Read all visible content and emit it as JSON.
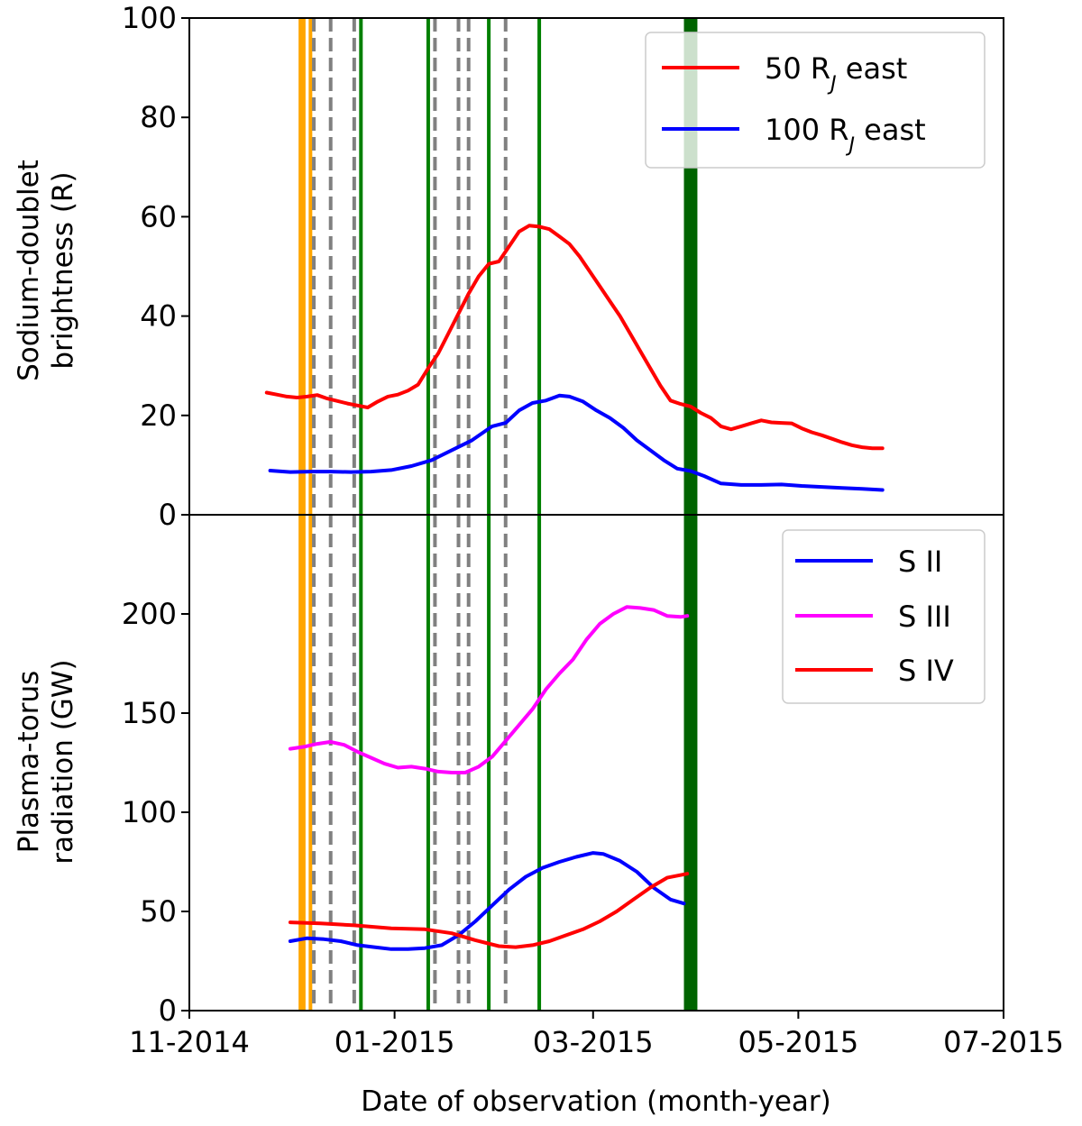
{
  "chart_data": [
    {
      "type": "line",
      "panel": "top",
      "ylabel": "Sodium-doublet brightness (R)",
      "ylim": [
        0,
        100
      ],
      "y_ticks": [
        "0",
        "20",
        "40",
        "60",
        "80",
        "100"
      ],
      "legend_placement": "top-right",
      "series": [
        {
          "name": "50 RJ east",
          "name_base": "50 R",
          "name_sub": "J",
          "name_suffix": " east",
          "color": "#ff0000",
          "points": [
            [
              "2014-11-24",
              24.6
            ],
            [
              "2014-11-27",
              24.2
            ],
            [
              "2014-11-30",
              23.8
            ],
            [
              "2014-12-03",
              23.6
            ],
            [
              "2014-12-06",
              23.8
            ],
            [
              "2014-12-09",
              24.1
            ],
            [
              "2014-12-12",
              23.4
            ],
            [
              "2014-12-15",
              22.9
            ],
            [
              "2014-12-18",
              22.4
            ],
            [
              "2014-12-21",
              22.0
            ],
            [
              "2014-12-24",
              21.6
            ],
            [
              "2014-12-27",
              22.8
            ],
            [
              "2014-12-30",
              23.8
            ],
            [
              "2015-01-02",
              24.2
            ],
            [
              "2015-01-05",
              25.0
            ],
            [
              "2015-01-08",
              26.2
            ],
            [
              "2015-01-11",
              29.5
            ],
            [
              "2015-01-14",
              32.5
            ],
            [
              "2015-01-17",
              36.5
            ],
            [
              "2015-01-20",
              40.5
            ],
            [
              "2015-01-23",
              44.5
            ],
            [
              "2015-01-26",
              48.0
            ],
            [
              "2015-01-29",
              50.5
            ],
            [
              "2015-02-01",
              51.0
            ],
            [
              "2015-02-04",
              54.0
            ],
            [
              "2015-02-07",
              57.0
            ],
            [
              "2015-02-10",
              58.2
            ],
            [
              "2015-02-13",
              58.0
            ],
            [
              "2015-02-16",
              57.5
            ],
            [
              "2015-02-19",
              56.0
            ],
            [
              "2015-02-22",
              54.5
            ],
            [
              "2015-02-25",
              52.0
            ],
            [
              "2015-02-28",
              49.0
            ],
            [
              "2015-03-03",
              46.0
            ],
            [
              "2015-03-06",
              43.0
            ],
            [
              "2015-03-09",
              40.0
            ],
            [
              "2015-03-12",
              36.5
            ],
            [
              "2015-03-15",
              33.0
            ],
            [
              "2015-03-18",
              29.5
            ],
            [
              "2015-03-21",
              26.0
            ],
            [
              "2015-03-24",
              23.0
            ],
            [
              "2015-03-27",
              22.3
            ],
            [
              "2015-03-30",
              21.8
            ],
            [
              "2015-04-02",
              20.5
            ],
            [
              "2015-04-05",
              19.5
            ],
            [
              "2015-04-08",
              17.8
            ],
            [
              "2015-04-11",
              17.2
            ],
            [
              "2015-04-14",
              17.8
            ],
            [
              "2015-04-17",
              18.4
            ],
            [
              "2015-04-20",
              19.0
            ],
            [
              "2015-04-23",
              18.6
            ],
            [
              "2015-04-26",
              18.5
            ],
            [
              "2015-04-29",
              18.4
            ],
            [
              "2015-05-02",
              17.4
            ],
            [
              "2015-05-05",
              16.6
            ],
            [
              "2015-05-08",
              16.0
            ],
            [
              "2015-05-11",
              15.3
            ],
            [
              "2015-05-14",
              14.6
            ],
            [
              "2015-05-17",
              14.0
            ],
            [
              "2015-05-20",
              13.6
            ],
            [
              "2015-05-23",
              13.4
            ],
            [
              "2015-05-26",
              13.4
            ]
          ]
        },
        {
          "name": "100 RJ east",
          "name_base": "100 R",
          "name_sub": "J",
          "name_suffix": " east",
          "color": "#0000ff",
          "points": [
            [
              "2014-11-25",
              8.9
            ],
            [
              "2014-12-01",
              8.6
            ],
            [
              "2014-12-07",
              8.7
            ],
            [
              "2014-12-13",
              8.7
            ],
            [
              "2014-12-19",
              8.6
            ],
            [
              "2014-12-25",
              8.7
            ],
            [
              "2014-12-31",
              9.0
            ],
            [
              "2015-01-06",
              9.8
            ],
            [
              "2015-01-12",
              11.0
            ],
            [
              "2015-01-18",
              13.0
            ],
            [
              "2015-01-24",
              15.0
            ],
            [
              "2015-01-30",
              17.8
            ],
            [
              "2015-02-03",
              18.5
            ],
            [
              "2015-02-07",
              21.0
            ],
            [
              "2015-02-11",
              22.5
            ],
            [
              "2015-02-15",
              23.0
            ],
            [
              "2015-02-19",
              24.0
            ],
            [
              "2015-02-22",
              23.8
            ],
            [
              "2015-02-26",
              22.8
            ],
            [
              "2015-03-02",
              21.0
            ],
            [
              "2015-03-06",
              19.5
            ],
            [
              "2015-03-10",
              17.5
            ],
            [
              "2015-03-14",
              15.0
            ],
            [
              "2015-03-18",
              13.0
            ],
            [
              "2015-03-22",
              11.0
            ],
            [
              "2015-03-26",
              9.3
            ],
            [
              "2015-03-30",
              8.8
            ],
            [
              "2015-04-03",
              7.8
            ],
            [
              "2015-04-08",
              6.3
            ],
            [
              "2015-04-14",
              6.0
            ],
            [
              "2015-04-20",
              6.0
            ],
            [
              "2015-04-26",
              6.1
            ],
            [
              "2015-05-02",
              5.8
            ],
            [
              "2015-05-08",
              5.6
            ],
            [
              "2015-05-14",
              5.4
            ],
            [
              "2015-05-20",
              5.2
            ],
            [
              "2015-05-26",
              5.0
            ]
          ]
        }
      ]
    },
    {
      "type": "line",
      "panel": "bottom",
      "ylabel": "Plasma-torus radiation (GW)",
      "ylim": [
        0,
        250
      ],
      "y_ticks": [
        "0",
        "50",
        "100",
        "150",
        "200"
      ],
      "legend_placement": "top-right",
      "xlabel": "Date of observation (month-year)",
      "x_ticks": [
        "11-2014",
        "01-2015",
        "03-2015",
        "05-2015",
        "07-2015"
      ],
      "xlim": [
        "2014-11-01",
        "2015-07-01"
      ],
      "series": [
        {
          "name": "S II",
          "color": "#0000ff",
          "points": [
            [
              "2014-12-01",
              35.0
            ],
            [
              "2014-12-06",
              36.5
            ],
            [
              "2014-12-11",
              36.0
            ],
            [
              "2014-12-16",
              35.0
            ],
            [
              "2014-12-21",
              33.0
            ],
            [
              "2014-12-26",
              32.0
            ],
            [
              "2014-12-31",
              31.0
            ],
            [
              "2015-01-05",
              31.0
            ],
            [
              "2015-01-10",
              31.5
            ],
            [
              "2015-01-15",
              33.0
            ],
            [
              "2015-01-20",
              38.0
            ],
            [
              "2015-01-25",
              45.0
            ],
            [
              "2015-01-30",
              53.0
            ],
            [
              "2015-02-04",
              61.0
            ],
            [
              "2015-02-09",
              67.5
            ],
            [
              "2015-02-14",
              72.0
            ],
            [
              "2015-02-19",
              75.0
            ],
            [
              "2015-02-24",
              77.5
            ],
            [
              "2015-03-01",
              79.5
            ],
            [
              "2015-03-04",
              79.0
            ],
            [
              "2015-03-09",
              75.5
            ],
            [
              "2015-03-14",
              70.0
            ],
            [
              "2015-03-19",
              62.0
            ],
            [
              "2015-03-24",
              56.0
            ],
            [
              "2015-03-28",
              54.0
            ]
          ]
        },
        {
          "name": "S III",
          "color": "#ff00ff",
          "points": [
            [
              "2014-12-01",
              132.0
            ],
            [
              "2014-12-05",
              133.0
            ],
            [
              "2014-12-09",
              134.5
            ],
            [
              "2014-12-13",
              135.5
            ],
            [
              "2014-12-17",
              134.0
            ],
            [
              "2014-12-21",
              130.5
            ],
            [
              "2014-12-25",
              127.5
            ],
            [
              "2014-12-29",
              124.5
            ],
            [
              "2015-01-02",
              122.5
            ],
            [
              "2015-01-06",
              123.0
            ],
            [
              "2015-01-10",
              122.0
            ],
            [
              "2015-01-14",
              120.5
            ],
            [
              "2015-01-18",
              120.0
            ],
            [
              "2015-01-22",
              120.0
            ],
            [
              "2015-01-26",
              123.0
            ],
            [
              "2015-01-30",
              128.0
            ],
            [
              "2015-02-03",
              136.0
            ],
            [
              "2015-02-07",
              144.0
            ],
            [
              "2015-02-11",
              152.0
            ],
            [
              "2015-02-15",
              162.0
            ],
            [
              "2015-02-19",
              170.0
            ],
            [
              "2015-02-23",
              177.0
            ],
            [
              "2015-02-27",
              187.0
            ],
            [
              "2015-03-03",
              195.0
            ],
            [
              "2015-03-07",
              200.0
            ],
            [
              "2015-03-11",
              203.5
            ],
            [
              "2015-03-15",
              203.0
            ],
            [
              "2015-03-19",
              202.0
            ],
            [
              "2015-03-23",
              199.0
            ],
            [
              "2015-03-27",
              198.5
            ],
            [
              "2015-03-29",
              199.0
            ]
          ]
        },
        {
          "name": "S IV",
          "color": "#ff0000",
          "points": [
            [
              "2014-12-01",
              44.5
            ],
            [
              "2014-12-10",
              44.0
            ],
            [
              "2014-12-20",
              43.0
            ],
            [
              "2014-12-31",
              41.5
            ],
            [
              "2015-01-10",
              41.0
            ],
            [
              "2015-01-18",
              39.0
            ],
            [
              "2015-01-25",
              35.5
            ],
            [
              "2015-02-01",
              32.5
            ],
            [
              "2015-02-06",
              32.0
            ],
            [
              "2015-02-11",
              33.0
            ],
            [
              "2015-02-16",
              35.0
            ],
            [
              "2015-02-21",
              38.0
            ],
            [
              "2015-02-26",
              41.0
            ],
            [
              "2015-03-03",
              45.0
            ],
            [
              "2015-03-08",
              50.0
            ],
            [
              "2015-03-13",
              56.0
            ],
            [
              "2015-03-18",
              62.0
            ],
            [
              "2015-03-23",
              67.0
            ],
            [
              "2015-03-29",
              69.0
            ]
          ]
        }
      ]
    }
  ],
  "event_markers": {
    "orange": {
      "color": "#ffa500",
      "dates": [
        "2014-12-04",
        "2014-12-05",
        "2014-12-07"
      ]
    },
    "gray_dashed": {
      "color": "#808080",
      "dates": [
        "2014-12-08",
        "2014-12-13",
        "2014-12-20",
        "2015-01-13",
        "2015-01-20",
        "2015-01-23",
        "2015-02-03"
      ]
    },
    "green": {
      "color": "#008000",
      "dates": [
        "2014-12-22",
        "2015-01-11",
        "2015-01-29",
        "2015-02-13"
      ]
    },
    "green_band": {
      "color": "#006400",
      "start": "2015-03-28",
      "end": "2015-04-01"
    }
  }
}
